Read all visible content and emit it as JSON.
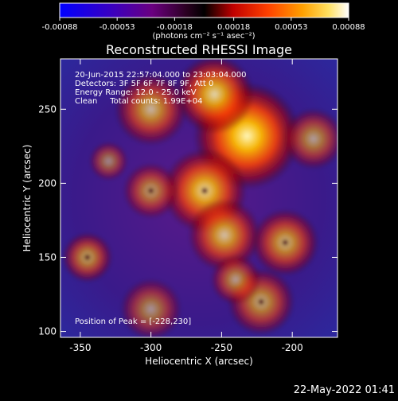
{
  "chart_data": {
    "type": "heatmap",
    "title": "Reconstructed RHESSI Image",
    "xlabel": "Heliocentric X (arcsec)",
    "ylabel": "Heliocentric Y (arcsec)",
    "xlim": [
      -364,
      -168
    ],
    "ylim": [
      96,
      284
    ],
    "xticks": [
      -350,
      -300,
      -250,
      -200
    ],
    "yticks": [
      100,
      150,
      200,
      250
    ],
    "colorbar": {
      "units": "(photons cm⁻² s⁻¹ asec⁻²)",
      "ticks": [
        "-0.00088",
        "-0.00053",
        "-0.00018",
        "0.00018",
        "0.00053",
        "0.00088"
      ],
      "range": [
        -0.00088,
        0.00088
      ]
    },
    "info_lines": [
      "20-Jun-2015 22:57:04.000 to 23:03:04.000",
      "Detectors: 3F 5F 6F 7F 8F 9F, Att 0",
      "Energy Range: 12.0 - 25.0 keV",
      "Clean     Total counts: 1.99E+04"
    ],
    "peak_label": "Position of Peak = [-228,230]",
    "peak": [
      -228,
      230
    ],
    "hotspots": [
      {
        "x": -232,
        "y": 232,
        "r": 38,
        "a": 1.0
      },
      {
        "x": -255,
        "y": 260,
        "r": 28,
        "a": 0.85
      },
      {
        "x": -300,
        "y": 250,
        "r": 26,
        "a": 0.7
      },
      {
        "x": -262,
        "y": 195,
        "r": 30,
        "a": 0.85
      },
      {
        "x": -248,
        "y": 165,
        "r": 26,
        "a": 0.75
      },
      {
        "x": -205,
        "y": 160,
        "r": 24,
        "a": 0.7
      },
      {
        "x": -185,
        "y": 230,
        "r": 22,
        "a": 0.6
      },
      {
        "x": -345,
        "y": 150,
        "r": 18,
        "a": 0.65
      },
      {
        "x": -300,
        "y": 195,
        "r": 20,
        "a": 0.6
      },
      {
        "x": -300,
        "y": 115,
        "r": 22,
        "a": 0.55
      },
      {
        "x": -222,
        "y": 120,
        "r": 24,
        "a": 0.65
      },
      {
        "x": -330,
        "y": 215,
        "r": 14,
        "a": 0.5
      },
      {
        "x": -240,
        "y": 135,
        "r": 18,
        "a": 0.6
      }
    ]
  },
  "timestamp": "22-May-2022 01:41"
}
